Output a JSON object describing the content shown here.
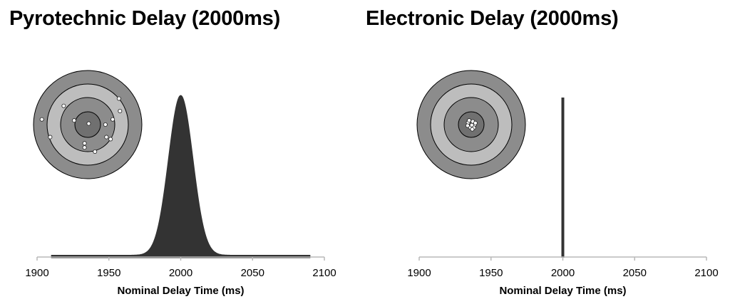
{
  "chart_data": [
    {
      "type": "area",
      "title": "Pyrotechnic Delay (2000ms)",
      "xlabel": "Nominal Delay Time (ms)",
      "ylabel": "",
      "xlim": [
        1900,
        2100
      ],
      "xticks": [
        1900,
        1950,
        2000,
        2050,
        2100
      ],
      "distribution": {
        "mean": 2000,
        "std_dev": 8.5,
        "range": [
          1910,
          2090
        ]
      },
      "grid": false,
      "legend": "none",
      "fill_color": "#333333",
      "inset": {
        "type": "target",
        "ring_colors": [
          "#8c8c8c",
          "#bdbdbd",
          "#8c8c8c",
          "#707070"
        ],
        "hits": [
          [
            3,
            -2.5
          ],
          [
            -2.3,
            -1.8
          ],
          [
            -1.3,
            -0.4
          ],
          [
            0.1,
            -0.1
          ],
          [
            1.7,
            0
          ],
          [
            2.4,
            -0.5
          ],
          [
            3.1,
            -1.3
          ],
          [
            -4.4,
            -0.5
          ],
          [
            -3.6,
            1.2
          ],
          [
            1.8,
            1.2
          ],
          [
            2.2,
            1.4
          ],
          [
            -0.3,
            1.8
          ],
          [
            0.7,
            2.6
          ],
          [
            -0.3,
            2.2
          ]
        ]
      }
    },
    {
      "type": "line",
      "title": "Electronic Delay (2000ms)",
      "xlabel": "Nominal Delay Time (ms)",
      "ylabel": "",
      "xlim": [
        1900,
        2100
      ],
      "xticks": [
        1900,
        1950,
        2000,
        2050,
        2100
      ],
      "spike": {
        "x": 2000
      },
      "grid": false,
      "legend": "none",
      "fill_color": "#333333",
      "inset": {
        "type": "target",
        "ring_colors": [
          "#8c8c8c",
          "#bdbdbd",
          "#8c8c8c",
          "#707070"
        ],
        "hits": [
          [
            -0.3,
            -0.2
          ],
          [
            0.15,
            -0.3
          ],
          [
            0.35,
            0
          ],
          [
            -0.1,
            0.25
          ],
          [
            0.25,
            0.3
          ],
          [
            -0.35,
            0.1
          ],
          [
            0.05,
            0.05
          ],
          [
            0.4,
            -0.15
          ],
          [
            -0.2,
            -0.4
          ],
          [
            0.1,
            0.45
          ]
        ]
      }
    }
  ]
}
